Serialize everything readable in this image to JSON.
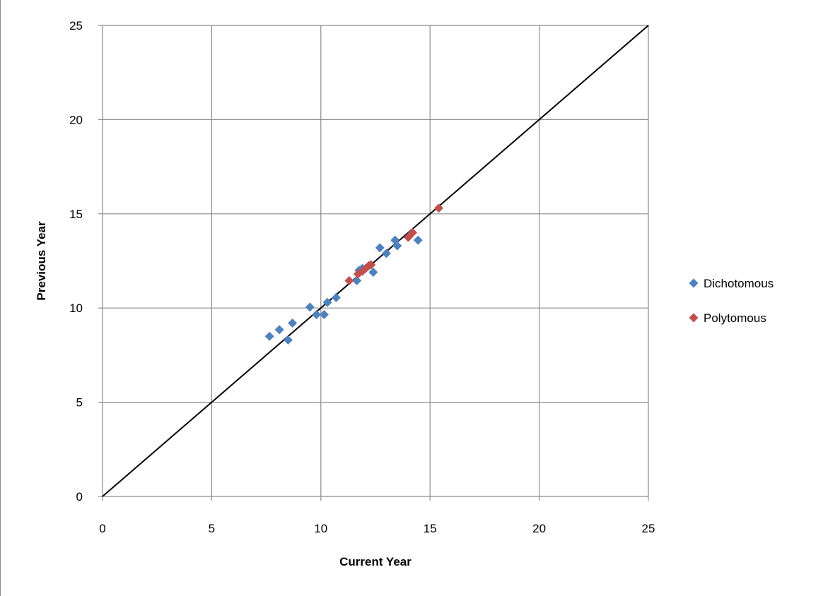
{
  "chart_data": {
    "type": "scatter",
    "xlabel": "Current Year",
    "ylabel": "Previous Year",
    "xlim": [
      0,
      25
    ],
    "ylim": [
      0,
      25
    ],
    "xticks": [
      0,
      5,
      10,
      15,
      20,
      25
    ],
    "yticks": [
      0,
      5,
      10,
      15,
      20,
      25
    ],
    "grid": true,
    "legend_position": "right",
    "reference_line": {
      "from": [
        0,
        0
      ],
      "to": [
        25,
        25
      ],
      "color": "#000000"
    },
    "series": [
      {
        "name": "Dichotomous",
        "color": "#4f81bd",
        "marker": "diamond",
        "points": [
          [
            7.65,
            8.5
          ],
          [
            8.1,
            8.85
          ],
          [
            8.5,
            8.3
          ],
          [
            8.7,
            9.2
          ],
          [
            9.5,
            10.05
          ],
          [
            9.8,
            9.65
          ],
          [
            10.15,
            9.65
          ],
          [
            10.3,
            10.3
          ],
          [
            10.7,
            10.55
          ],
          [
            11.65,
            11.45
          ],
          [
            11.75,
            12.0
          ],
          [
            11.9,
            12.1
          ],
          [
            12.4,
            11.9
          ],
          [
            12.7,
            13.2
          ],
          [
            13.0,
            12.9
          ],
          [
            13.4,
            13.6
          ],
          [
            13.5,
            13.3
          ],
          [
            14.45,
            13.6
          ]
        ]
      },
      {
        "name": "Polytomous",
        "color": "#c0504d",
        "marker": "diamond",
        "points": [
          [
            11.3,
            11.45
          ],
          [
            11.7,
            11.8
          ],
          [
            11.9,
            11.95
          ],
          [
            12.05,
            12.1
          ],
          [
            12.2,
            12.25
          ],
          [
            12.3,
            12.3
          ],
          [
            14.0,
            13.75
          ],
          [
            14.2,
            14.0
          ],
          [
            15.4,
            15.3
          ]
        ]
      }
    ]
  }
}
